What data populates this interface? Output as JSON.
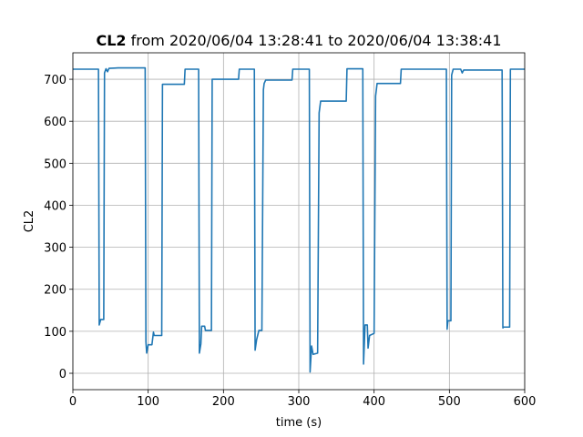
{
  "chart_data": {
    "type": "line",
    "title": {
      "bold": "CL2",
      "text": "from 2020/06/04 13:28:41 to 2020/06/04 13:38:41"
    },
    "xlabel": "time (s)",
    "ylabel": "CL2",
    "series": [
      {
        "name": "CL2",
        "color": "#1f77b4",
        "x": [
          0,
          34,
          35,
          37,
          41,
          42,
          44,
          46,
          48,
          60,
          96,
          97,
          98,
          100,
          105,
          107,
          108,
          118,
          119,
          148,
          149,
          167,
          168,
          170,
          171,
          175,
          176,
          184,
          185,
          220,
          221,
          241,
          242,
          244,
          247,
          251,
          253,
          254,
          256,
          291,
          292,
          314,
          315,
          317,
          319,
          325,
          327,
          329,
          363,
          364,
          385,
          386,
          388,
          391,
          392,
          394,
          400,
          402,
          404,
          435,
          436,
          496,
          497,
          498,
          502,
          503,
          505,
          515,
          517,
          519,
          570,
          571,
          572,
          580,
          581,
          600
        ],
        "values": [
          724,
          724,
          115,
          128,
          128,
          715,
          725,
          718,
          726,
          727,
          727,
          75,
          48,
          68,
          68,
          98,
          90,
          90,
          688,
          688,
          724,
          724,
          48,
          70,
          112,
          112,
          102,
          102,
          700,
          700,
          724,
          724,
          55,
          80,
          102,
          102,
          675,
          690,
          698,
          698,
          724,
          724,
          3,
          65,
          45,
          48,
          620,
          648,
          648,
          725,
          725,
          22,
          115,
          115,
          60,
          90,
          95,
          660,
          690,
          690,
          724,
          724,
          105,
          125,
          125,
          710,
          724,
          724,
          715,
          722,
          722,
          108,
          110,
          110,
          724,
          724
        ]
      }
    ],
    "xlim": [
      0,
      600
    ],
    "ylim": [
      -39,
      763
    ],
    "xticks": [
      0,
      100,
      200,
      300,
      400,
      500,
      600
    ],
    "yticks": [
      0,
      100,
      200,
      300,
      400,
      500,
      600,
      700
    ],
    "grid": true
  }
}
